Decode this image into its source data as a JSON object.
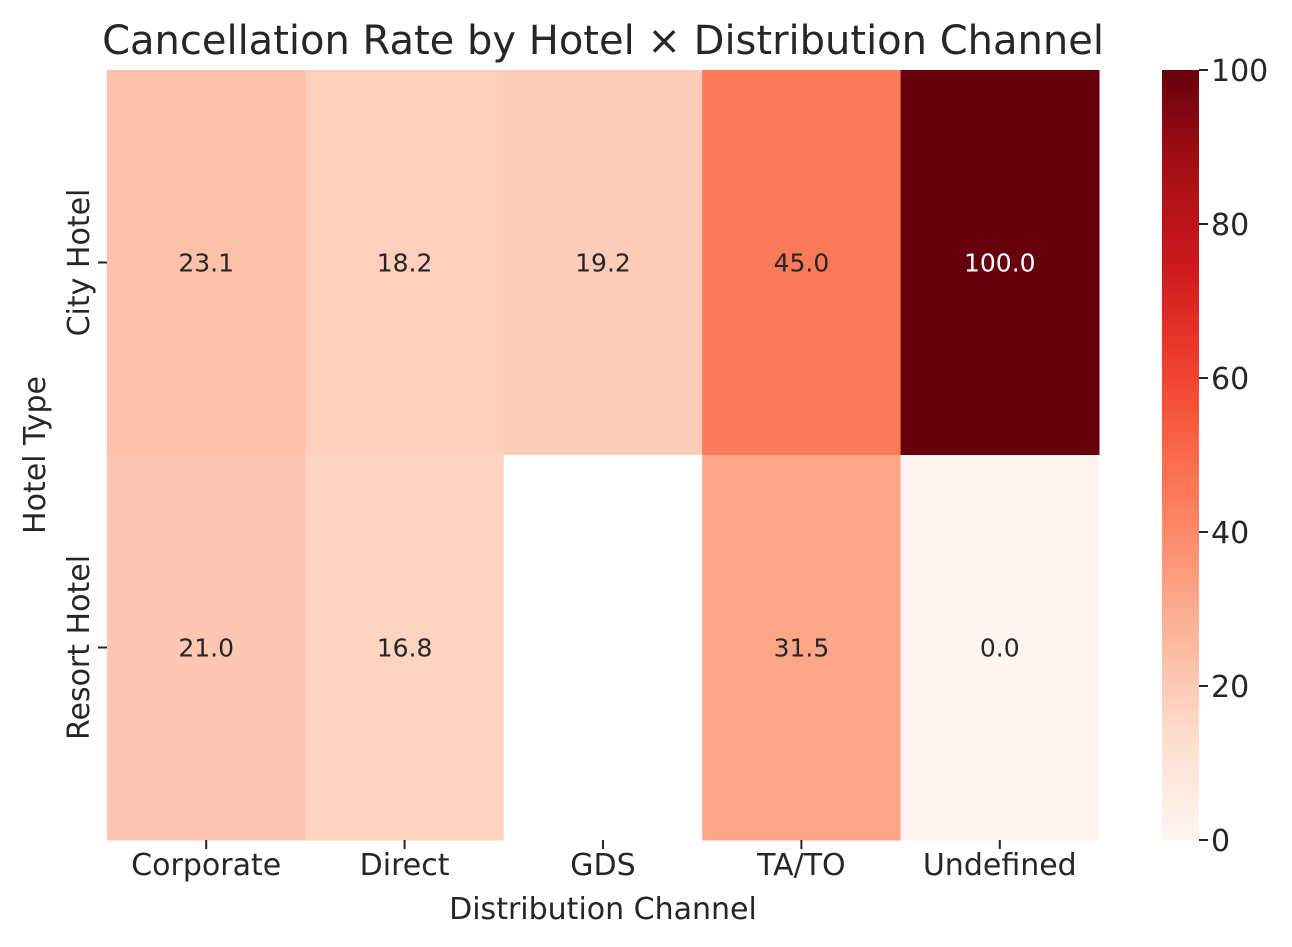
{
  "chart_data": {
    "type": "heatmap",
    "title": "Cancellation Rate by Hotel × Distribution Channel",
    "xlabel": "Distribution Channel",
    "ylabel": "Hotel Type",
    "x_categories": [
      "Corporate",
      "Direct",
      "GDS",
      "TA/TO",
      "Undefined"
    ],
    "y_categories": [
      "City Hotel",
      "Resort Hotel"
    ],
    "values": [
      [
        23.1,
        18.2,
        19.2,
        45.0,
        100.0
      ],
      [
        21.0,
        16.8,
        null,
        31.5,
        0.0
      ]
    ],
    "value_format": "0.1f",
    "colormap": "Reds",
    "color_range": [
      0,
      100
    ],
    "colorbar_ticks": [
      0,
      20,
      40,
      60,
      80,
      100
    ],
    "missing_color": "#ffffff",
    "text_color_dark": "#262626",
    "text_color_light": "#ffffff"
  }
}
